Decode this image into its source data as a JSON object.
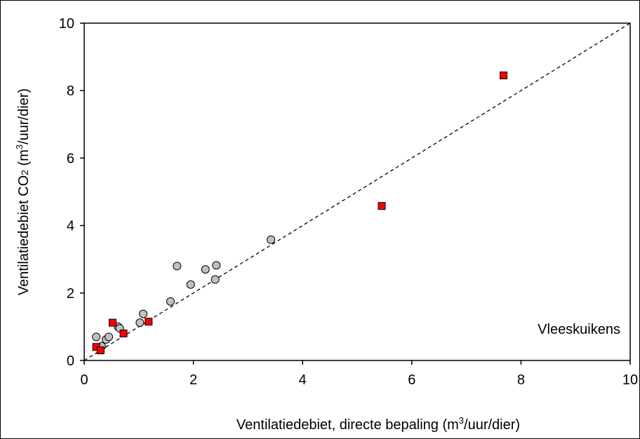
{
  "chart_data": {
    "type": "scatter",
    "title": "",
    "xlabel": {
      "prefix": "Ventilatiedebiet, directe bepaling (m",
      "sup": "3",
      "suffix": "/uur/dier)"
    },
    "ylabel": {
      "prefix": "Ventilatiedebiet CO",
      "sub": "2",
      "mid": " (m",
      "sup": "3",
      "suffix": "/uur/dier)"
    },
    "xlim": [
      0,
      10
    ],
    "ylim": [
      0,
      10
    ],
    "x_ticks": [
      "0",
      "2",
      "4",
      "6",
      "8",
      "10"
    ],
    "y_ticks": [
      "0",
      "2",
      "4",
      "6",
      "8",
      "10"
    ],
    "x_tick_values": [
      0,
      2,
      4,
      6,
      8,
      10
    ],
    "y_tick_values": [
      0,
      2,
      4,
      6,
      8,
      10
    ],
    "grid": false,
    "annotation": "Vleeskuikens",
    "reference_line": {
      "style": "dashed",
      "from": [
        0,
        0
      ],
      "to": [
        10,
        10
      ]
    },
    "series": [
      {
        "marker": "circle",
        "color": "#c0c0c0",
        "x": [
          0.22,
          0.32,
          0.4,
          0.45,
          0.62,
          0.65,
          1.02,
          1.08,
          1.58,
          1.7,
          1.95,
          2.22,
          2.4,
          2.42,
          3.42
        ],
        "y": [
          0.7,
          0.42,
          0.62,
          0.7,
          1.0,
          0.95,
          1.12,
          1.38,
          1.75,
          2.8,
          2.25,
          2.7,
          2.4,
          2.82,
          3.58
        ]
      },
      {
        "marker": "square",
        "color": "#ff0000",
        "x": [
          0.22,
          0.3,
          0.52,
          0.72,
          1.18,
          5.45,
          7.68
        ],
        "y": [
          0.4,
          0.3,
          1.12,
          0.8,
          1.15,
          4.58,
          8.45
        ]
      }
    ]
  }
}
